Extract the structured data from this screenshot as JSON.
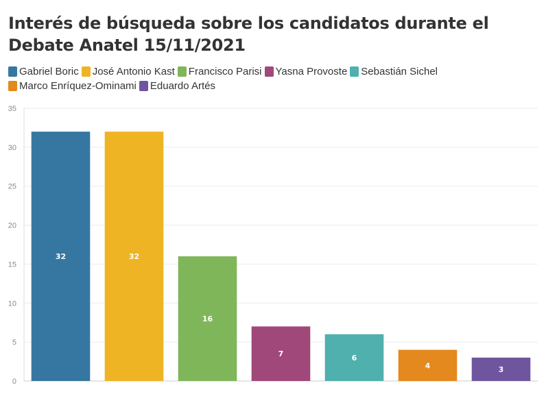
{
  "title": "Interés de búsqueda sobre los candidatos durante el Debate Anatel 15/11/2021",
  "legend": [
    {
      "name": "Gabriel Boric",
      "color": "#3577a1"
    },
    {
      "name": "José Antonio Kast",
      "color": "#eeb424"
    },
    {
      "name": "Francisco Parisi",
      "color": "#80b65a"
    },
    {
      "name": "Yasna Provoste",
      "color": "#a04879"
    },
    {
      "name": "Sebastián Sichel",
      "color": "#4fb0ae"
    },
    {
      "name": "Marco Enríquez-Ominami",
      "color": "#e4891d"
    },
    {
      "name": "Eduardo Artés",
      "color": "#6f559e"
    }
  ],
  "chart_data": {
    "type": "bar",
    "categories": [
      "Gabriel Boric",
      "José Antonio Kast",
      "Francisco Parisi",
      "Yasna Provoste",
      "Sebastián Sichel",
      "Marco Enríquez-Ominami",
      "Eduardo Artés"
    ],
    "values": [
      32,
      32,
      16,
      7,
      6,
      4,
      3
    ],
    "colors": [
      "#3577a1",
      "#eeb424",
      "#80b65a",
      "#a04879",
      "#4fb0ae",
      "#e4891d",
      "#6f559e"
    ],
    "yticks": [
      0,
      5,
      10,
      15,
      20,
      25,
      30,
      35
    ],
    "ylim": [
      0,
      35
    ],
    "grid": true,
    "legend_position": "top"
  }
}
